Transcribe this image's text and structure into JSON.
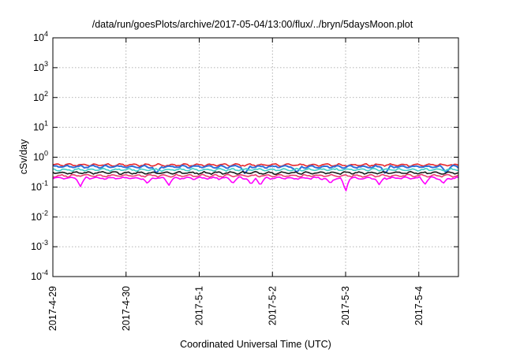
{
  "chart_data": {
    "type": "line",
    "title": "/data/run/goesPlots/archive/2017-05-04/13:00/flux/../bryn/5daysMoon.plot",
    "xlabel": "Coordinated Universal Time (UTC)",
    "ylabel": "cSv/day",
    "xscale": "time",
    "xlim": [
      "2017-04-29T00:00",
      "2017-05-04T13:00"
    ],
    "x_ticks": [
      "2017-4-29",
      "2017-4-30",
      "2017-5-1",
      "2017-5-2",
      "2017-5-3",
      "2017-5-4"
    ],
    "yscale": "log",
    "ylim": [
      0.0001,
      10000
    ],
    "y_ticks": [
      {
        "base": "10",
        "exp": "-4",
        "value": 0.0001
      },
      {
        "base": "10",
        "exp": "-3",
        "value": 0.001
      },
      {
        "base": "10",
        "exp": "-2",
        "value": 0.01
      },
      {
        "base": "10",
        "exp": "-1",
        "value": 0.1
      },
      {
        "base": "10",
        "exp": "0",
        "value": 1
      },
      {
        "base": "10",
        "exp": "1",
        "value": 10
      },
      {
        "base": "10",
        "exp": "2",
        "value": 100
      },
      {
        "base": "10",
        "exp": "3",
        "value": 1000
      },
      {
        "base": "10",
        "exp": "4",
        "value": 10000
      }
    ],
    "grid": true,
    "series": [
      {
        "color": "#e6262b",
        "level": 0.55,
        "dips": []
      },
      {
        "color": "#2e6fd9",
        "level": 0.48,
        "dips": [
          [
            "2017-04-30T10:00",
            0.28
          ],
          [
            "2017-05-01T15:00",
            0.27
          ],
          [
            "2017-05-02T08:00",
            0.3
          ],
          [
            "2017-05-03T13:00",
            0.27
          ],
          [
            "2017-05-04T09:00",
            0.29
          ]
        ]
      },
      {
        "color": "#3fd0c6",
        "level": 0.38,
        "dips": []
      },
      {
        "color": "#1a1a1a",
        "level": 0.3,
        "dips": []
      },
      {
        "color": "#e83f6f",
        "level": 0.24,
        "dips": []
      },
      {
        "color": "#ff00ff",
        "level": 0.2,
        "dips": [
          [
            "2017-04-29T09:00",
            0.1
          ],
          [
            "2017-04-30T07:00",
            0.13
          ],
          [
            "2017-04-30T14:00",
            0.11
          ],
          [
            "2017-05-01T11:00",
            0.13
          ],
          [
            "2017-05-01T17:00",
            0.12
          ],
          [
            "2017-05-01T20:00",
            0.11
          ],
          [
            "2017-05-02T19:00",
            0.13
          ],
          [
            "2017-05-03T00:00",
            0.065
          ],
          [
            "2017-05-03T11:00",
            0.12
          ],
          [
            "2017-05-04T02:00",
            0.12
          ],
          [
            "2017-05-04T08:00",
            0.13
          ]
        ]
      }
    ]
  }
}
